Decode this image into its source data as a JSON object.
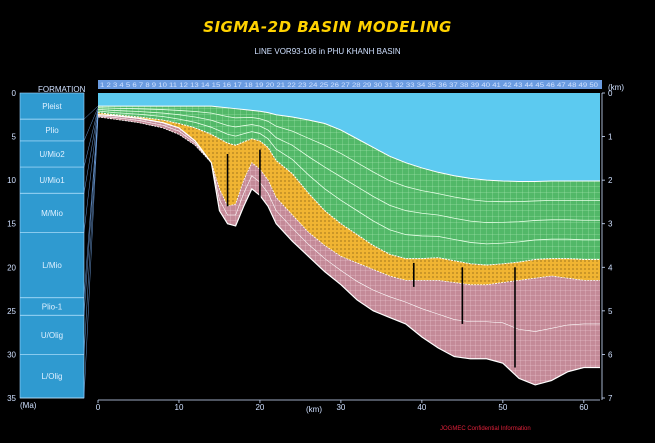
{
  "window": {
    "title": "SIGMA-2D BASIN MODELING",
    "subtitle": "LINE VOR93-106 in PHU KHANH BASIN",
    "credit": "JOGMEC Confidential Information"
  },
  "colors": {
    "background": "#000000",
    "title": "#ffd200",
    "water": "#5ccaf0",
    "green_layers": "#52b868",
    "orange_layers": "#f0b432",
    "pink_layers": "#c48a98",
    "formation_column": "#2f9ad0",
    "top_bar": "#6a9be0"
  },
  "formation_panel": {
    "header": "FORMATION",
    "unit_label": "(Ma)",
    "formations": [
      {
        "name": "Pleist",
        "top": 0,
        "base": 3
      },
      {
        "name": "Plio",
        "top": 3,
        "base": 5.5
      },
      {
        "name": "U/Mio2",
        "top": 5.5,
        "base": 8.5
      },
      {
        "name": "U/Mio1",
        "top": 8.5,
        "base": 11.5
      },
      {
        "name": "M/Mio",
        "top": 11.5,
        "base": 16
      },
      {
        "name": "L/Mio",
        "top": 16,
        "base": 23.5
      },
      {
        "name": "Plio-1",
        "top": 23.5,
        "base": 25.5
      },
      {
        "name": "U/Olig",
        "top": 25.5,
        "base": 30
      },
      {
        "name": "L/Olig",
        "top": 30,
        "base": 35
      }
    ],
    "age_ticks": [
      "0",
      "5",
      "10",
      "15",
      "20",
      "25",
      "30",
      "35"
    ]
  },
  "chart_data": {
    "type": "area",
    "title": "SIGMA-2D BASIN MODELING",
    "subtitle": "LINE VOR93-106 in PHU KHANH BASIN",
    "xlabel": "(km)",
    "ylabel": "(km)",
    "xlim": [
      0,
      62
    ],
    "ylim": [
      0,
      7
    ],
    "x_ticks": [
      "0",
      "10",
      "20",
      "30",
      "40",
      "50",
      "60"
    ],
    "y_ticks": [
      "0",
      "1",
      "2",
      "3",
      "4",
      "5",
      "6",
      "7"
    ],
    "top_bar_labels": "1 2 3 4 5 6 7 8 9 10 11 12 13 14 15 16 17 18 19 20 21 22 23 24 25 26 27 28 29 30 31 32 33 34 35 36 37 38 39 40 41 42 43 44 45 46 47 48 49 50",
    "horizons": {
      "x": [
        0,
        2,
        5,
        8,
        10,
        12,
        14,
        15,
        16,
        17,
        18,
        19,
        20,
        21,
        22,
        24,
        26,
        28,
        30,
        32,
        34,
        36,
        38,
        40,
        42,
        44,
        46,
        48,
        50,
        52,
        54,
        56,
        58,
        60,
        62
      ],
      "seabed": [
        0.3,
        0.3,
        0.3,
        0.3,
        0.3,
        0.3,
        0.3,
        0.32,
        0.34,
        0.36,
        0.38,
        0.4,
        0.42,
        0.45,
        0.5,
        0.55,
        0.62,
        0.7,
        0.85,
        1.05,
        1.25,
        1.45,
        1.6,
        1.72,
        1.82,
        1.9,
        1.96,
        2.0,
        2.02,
        2.03,
        2.03,
        2.02,
        2.02,
        2.02,
        2.02
      ],
      "top_orange": [
        0.45,
        0.5,
        0.55,
        0.62,
        0.7,
        0.8,
        0.95,
        1.05,
        1.15,
        1.2,
        1.12,
        1.05,
        1.1,
        1.25,
        1.55,
        1.85,
        2.3,
        2.7,
        3.0,
        3.25,
        3.5,
        3.7,
        3.8,
        3.8,
        3.78,
        3.85,
        3.92,
        3.95,
        3.92,
        3.88,
        3.82,
        3.8,
        3.8,
        3.82,
        3.82
      ],
      "top_pink": [
        0.55,
        0.6,
        0.68,
        0.8,
        0.95,
        1.2,
        1.6,
        2.2,
        2.6,
        2.55,
        2.0,
        1.6,
        1.75,
        2.0,
        2.4,
        2.8,
        3.2,
        3.5,
        3.75,
        3.9,
        4.05,
        4.2,
        4.3,
        4.3,
        4.3,
        4.35,
        4.4,
        4.4,
        4.35,
        4.3,
        4.25,
        4.2,
        4.25,
        4.3,
        4.3
      ],
      "basement": [
        0.5,
        0.52,
        0.58,
        0.68,
        0.8,
        1.1,
        1.6,
        2.7,
        3.0,
        3.05,
        2.6,
        2.2,
        2.35,
        2.6,
        3.0,
        3.4,
        3.75,
        4.1,
        4.4,
        4.75,
        5.0,
        5.15,
        5.3,
        5.6,
        5.85,
        6.05,
        6.1,
        6.1,
        6.2,
        6.55,
        6.7,
        6.6,
        6.4,
        6.3,
        6.3
      ]
    },
    "faults": [
      {
        "x": 16,
        "top": 1.4,
        "base": 2.6
      },
      {
        "x": 20,
        "top": 1.3,
        "base": 2.4
      },
      {
        "x": 39,
        "top": 3.9,
        "base": 4.45
      },
      {
        "x": 45,
        "top": 4.0,
        "base": 5.3
      },
      {
        "x": 51.5,
        "top": 4.0,
        "base": 6.3
      }
    ]
  }
}
